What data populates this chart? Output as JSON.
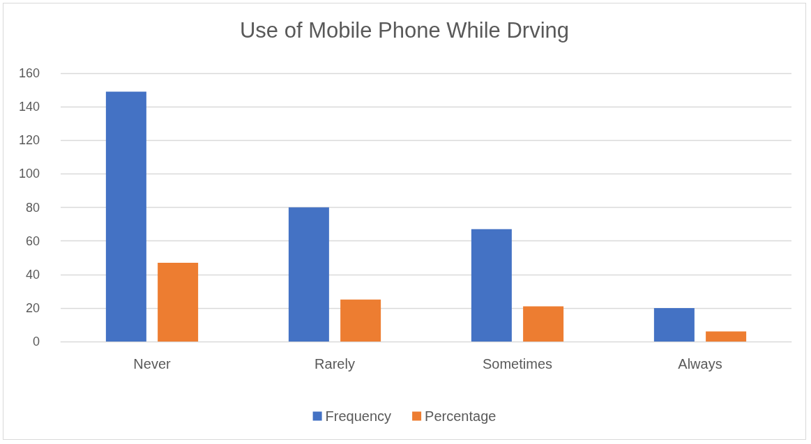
{
  "chart_data": {
    "type": "bar",
    "title": "Use of Mobile Phone While Drving",
    "categories": [
      "Never",
      "Rarely",
      "Sometimes",
      "Always"
    ],
    "series": [
      {
        "name": "Frequency",
        "color": "#4472c4",
        "values": [
          149,
          80,
          67,
          20
        ]
      },
      {
        "name": "Percentage",
        "color": "#ed7d31",
        "values": [
          47,
          25,
          21,
          6
        ]
      }
    ],
    "ylim": [
      0,
      160
    ],
    "yticks": [
      0,
      20,
      40,
      60,
      80,
      100,
      120,
      140,
      160
    ],
    "grid": "y",
    "legend": "bottom"
  }
}
